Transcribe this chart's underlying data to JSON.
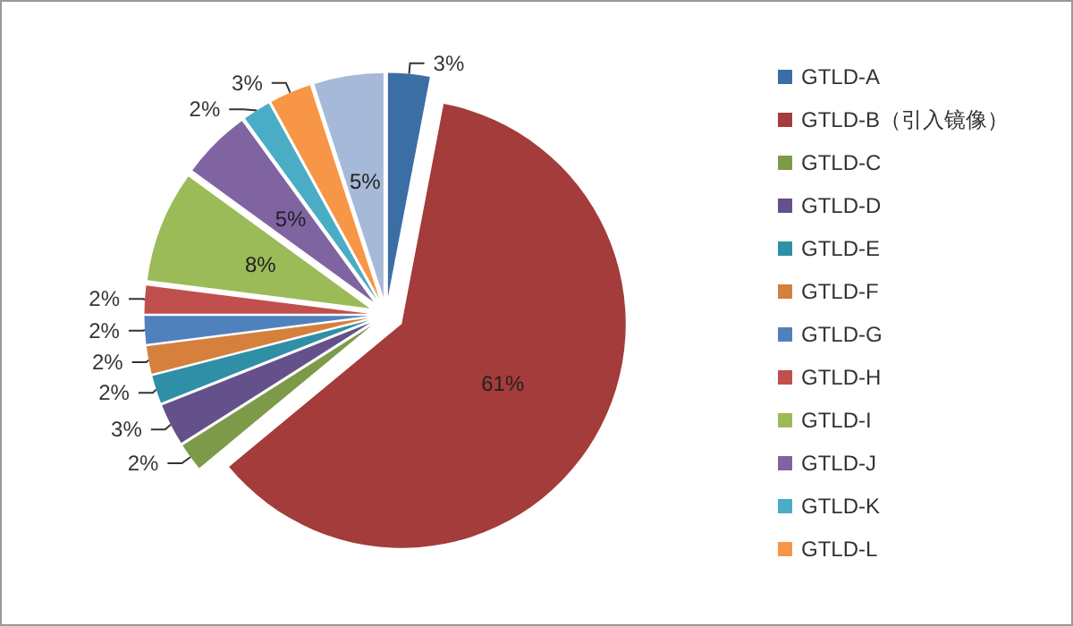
{
  "chart_data": {
    "type": "pie",
    "categories": [
      "GTLD-A",
      "GTLD-B（引入镜像）",
      "GTLD-C",
      "GTLD-D",
      "GTLD-E",
      "GTLD-F",
      "GTLD-G",
      "GTLD-H",
      "GTLD-I",
      "GTLD-J",
      "GTLD-K",
      "GTLD-L",
      null
    ],
    "values": [
      3,
      61,
      2,
      3,
      2,
      2,
      2,
      2,
      8,
      5,
      2,
      3,
      5
    ],
    "value_labels": [
      "3%",
      "61%",
      "2%",
      "3%",
      "2%",
      "2%",
      "2%",
      "2%",
      "8%",
      "5%",
      "2%",
      "3%",
      "5%"
    ],
    "colors": [
      "#3c6ea6",
      "#a33c3a",
      "#7d9a48",
      "#64508a",
      "#2f8fa6",
      "#d5803d",
      "#4f81bd",
      "#c0504d",
      "#9bbb59",
      "#8064a2",
      "#4bacc6",
      "#f79646",
      "#a7b9d9"
    ],
    "legend": "right"
  }
}
